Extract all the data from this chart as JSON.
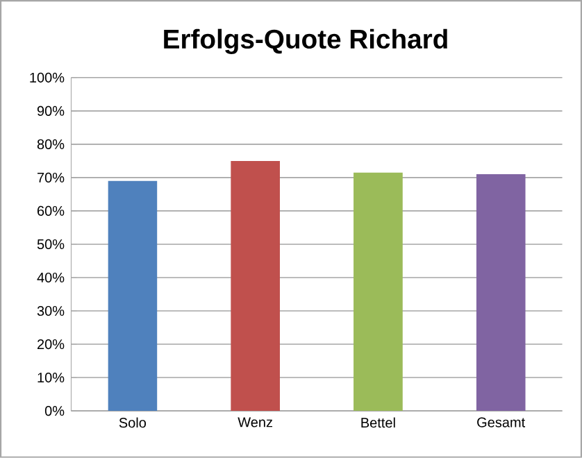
{
  "chart_data": {
    "type": "bar",
    "title": "Erfolgs-Quote Richard",
    "categories": [
      "Solo",
      "Wenz",
      "Bettel",
      "Gesamt"
    ],
    "values": [
      69,
      75,
      71.5,
      71
    ],
    "colors": [
      "#4f81bd",
      "#c0504d",
      "#9bbb59",
      "#8064a2"
    ],
    "ylim": [
      0,
      100
    ],
    "yticks": [
      {
        "value": 0,
        "label": "0%"
      },
      {
        "value": 10,
        "label": "10%"
      },
      {
        "value": 20,
        "label": "20%"
      },
      {
        "value": 30,
        "label": "30%"
      },
      {
        "value": 40,
        "label": "40%"
      },
      {
        "value": 50,
        "label": "50%"
      },
      {
        "value": 60,
        "label": "60%"
      },
      {
        "value": 70,
        "label": "70%"
      },
      {
        "value": 80,
        "label": "80%"
      },
      {
        "value": 90,
        "label": "90%"
      },
      {
        "value": 100,
        "label": "100%"
      }
    ],
    "grid": "y"
  }
}
